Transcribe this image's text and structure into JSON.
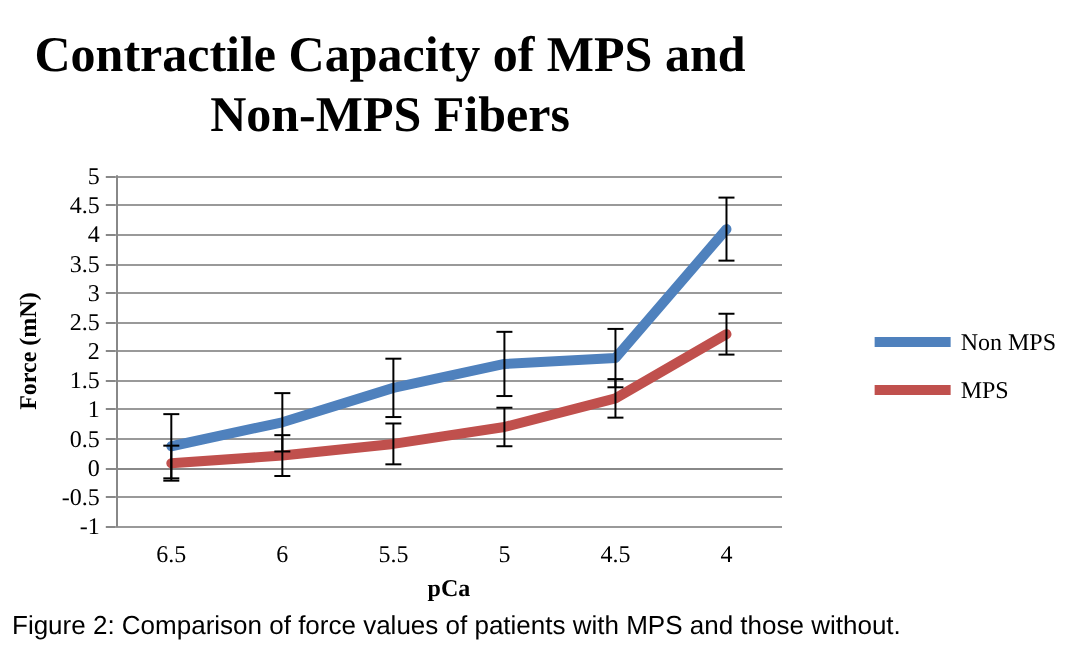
{
  "chart_data": {
    "type": "line",
    "title": "Contractile Capacity of MPS and Non-MPS Fibers",
    "xlabel": "pCa",
    "ylabel": "Force (mN)",
    "categories": [
      "6.5",
      "6",
      "5.5",
      "5",
      "4.5",
      "4"
    ],
    "series": [
      {
        "name": "Non MPS",
        "color": "#4f81bd",
        "values": [
          0.37,
          0.78,
          1.37,
          1.78,
          1.88,
          4.09
        ],
        "errors": [
          0.55,
          0.5,
          0.5,
          0.55,
          0.5,
          0.54
        ]
      },
      {
        "name": "MPS",
        "color": "#c0504d",
        "values": [
          0.08,
          0.21,
          0.41,
          0.7,
          1.19,
          2.29
        ],
        "errors": [
          0.3,
          0.35,
          0.35,
          0.33,
          0.33,
          0.35
        ]
      }
    ],
    "ylim": [
      -1,
      5
    ],
    "yticks": [
      -1,
      -0.5,
      0,
      0.5,
      1,
      1.5,
      2,
      2.5,
      3,
      3.5,
      4,
      4.5,
      5
    ],
    "grid": "y",
    "legend": "right",
    "marker": "none",
    "line_style": "solid",
    "annotations": [
      "Figure 2:  Comparison of force values of patients with MPS and those without."
    ]
  }
}
